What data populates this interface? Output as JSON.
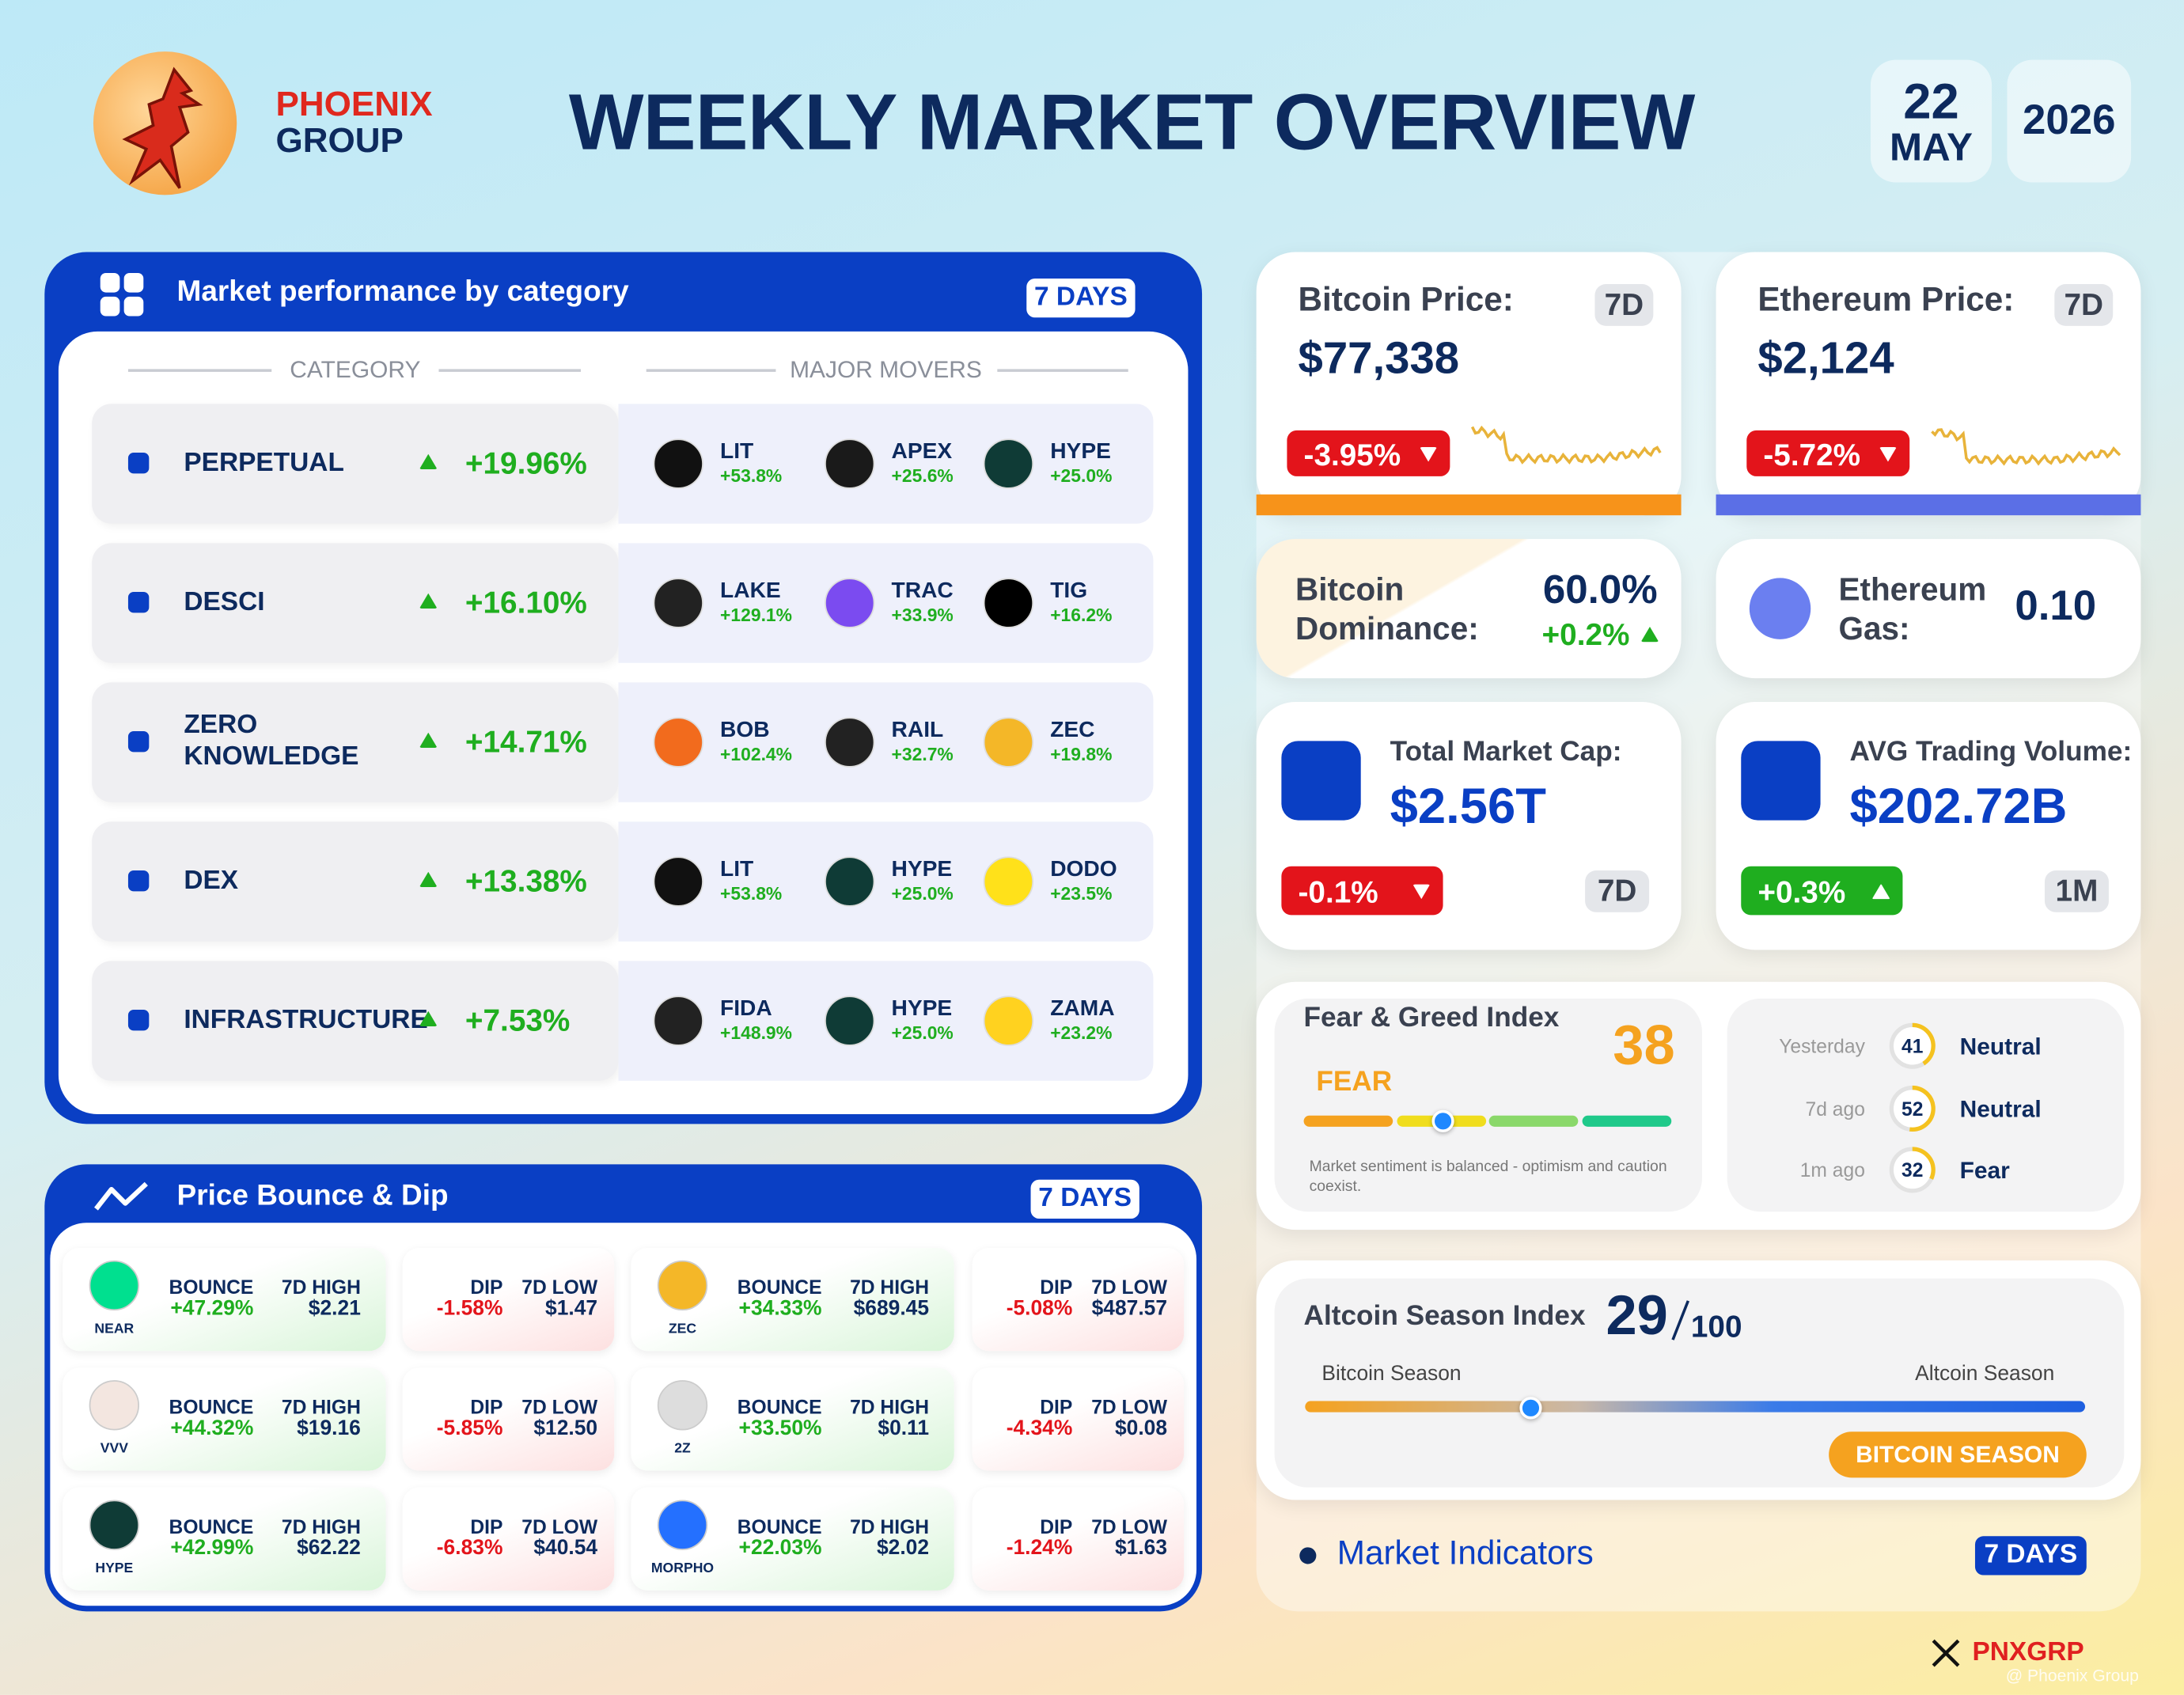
{
  "header": {
    "brand": [
      "PHOENIX",
      "GROUP"
    ],
    "title": "WEEKLY MARKET OVERVIEW",
    "date": {
      "day": "22",
      "month": "MAY",
      "year": "2026"
    }
  },
  "categories": {
    "title": "Market performance by category",
    "period": "7 DAYS",
    "columns": [
      "CATEGORY",
      "MAJOR MOVERS"
    ],
    "rows": [
      {
        "name": "PERPETUAL",
        "change": "+19.96%",
        "movers": [
          {
            "symbol": "LIT",
            "change": "+53.8%",
            "color": "#111111"
          },
          {
            "symbol": "APEX",
            "change": "+25.6%",
            "color": "#1a1a1a"
          },
          {
            "symbol": "HYPE",
            "change": "+25.0%",
            "color": "#0f3b36"
          }
        ]
      },
      {
        "name": "DESCI",
        "change": "+16.10%",
        "movers": [
          {
            "symbol": "LAKE",
            "change": "+129.1%",
            "color": "#222222"
          },
          {
            "symbol": "TRAC",
            "change": "+33.9%",
            "color": "#7b4bf0"
          },
          {
            "symbol": "TIG",
            "change": "+16.2%",
            "color": "#000000"
          }
        ]
      },
      {
        "name": "ZERO KNOWLEDGE",
        "change": "+14.71%",
        "movers": [
          {
            "symbol": "BOB",
            "change": "+102.4%",
            "color": "#f26b1d"
          },
          {
            "symbol": "RAIL",
            "change": "+32.7%",
            "color": "#222222"
          },
          {
            "symbol": "ZEC",
            "change": "+19.8%",
            "color": "#f4b728"
          }
        ]
      },
      {
        "name": "DEX",
        "change": "+13.38%",
        "movers": [
          {
            "symbol": "LIT",
            "change": "+53.8%",
            "color": "#111111"
          },
          {
            "symbol": "HYPE",
            "change": "+25.0%",
            "color": "#0f3b36"
          },
          {
            "symbol": "DODO",
            "change": "+23.5%",
            "color": "#ffe11a"
          }
        ]
      },
      {
        "name": "INFRASTRUCTURE",
        "change": "+7.53%",
        "movers": [
          {
            "symbol": "FIDA",
            "change": "+148.9%",
            "color": "#222222"
          },
          {
            "symbol": "HYPE",
            "change": "+25.0%",
            "color": "#0f3b36"
          },
          {
            "symbol": "ZAMA",
            "change": "+23.2%",
            "color": "#ffd21f"
          }
        ]
      }
    ]
  },
  "bounce_dip": {
    "title": "Price Bounce & Dip",
    "period": "7 DAYS",
    "labels": {
      "bounce": "BOUNCE",
      "high": "7D HIGH",
      "dip": "DIP",
      "low": "7D LOW"
    },
    "tokens": [
      {
        "symbol": "NEAR",
        "color": "#00e08f",
        "bounce": "+47.29%",
        "high": "$2.21",
        "dip": "-1.58%",
        "low": "$1.47"
      },
      {
        "symbol": "ZEC",
        "color": "#f4b728",
        "bounce": "+34.33%",
        "high": "$689.45",
        "dip": "-5.08%",
        "low": "$487.57"
      },
      {
        "symbol": "VVV",
        "color": "#f3e6e0",
        "bounce": "+44.32%",
        "high": "$19.16",
        "dip": "-5.85%",
        "low": "$12.50"
      },
      {
        "symbol": "2Z",
        "color": "#dddddd",
        "bounce": "+33.50%",
        "high": "$0.11",
        "dip": "-4.34%",
        "low": "$0.08"
      },
      {
        "symbol": "HYPE",
        "color": "#0f3b36",
        "bounce": "+42.99%",
        "high": "$62.22",
        "dip": "-6.83%",
        "low": "$40.54"
      },
      {
        "symbol": "MORPHO",
        "color": "#2470ff",
        "bounce": "+22.03%",
        "high": "$2.02",
        "dip": "-1.24%",
        "low": "$1.63"
      }
    ]
  },
  "bitcoin": {
    "label": "Bitcoin Price:",
    "period": "7D",
    "price": "$77,338",
    "change": "-3.95%"
  },
  "ethereum": {
    "label": "Ethereum Price:",
    "period": "7D",
    "price": "$2,124",
    "change": "-5.72%"
  },
  "dominance": {
    "label": "Bitcoin Dominance:",
    "value": "60.0%",
    "change": "+0.2%"
  },
  "gas": {
    "label": "Ethereum Gas:",
    "value": "0.10"
  },
  "market_cap": {
    "label": "Total Market Cap:",
    "value": "$2.56T",
    "change": "-0.1%",
    "period": "7D"
  },
  "volume": {
    "label": "AVG Trading Volume:",
    "value": "$202.72B",
    "change": "+0.3%",
    "period": "1M"
  },
  "fear_greed": {
    "title": "Fear & Greed Index",
    "value": 38,
    "label": "FEAR",
    "note": "Market sentiment is balanced - optimism and caution coexist.",
    "history": [
      {
        "when": "Yesterday",
        "value": 41,
        "label": "Neutral"
      },
      {
        "when": "7d ago",
        "value": 52,
        "label": "Neutral"
      },
      {
        "when": "1m ago",
        "value": 32,
        "label": "Fear"
      }
    ]
  },
  "altcoin_season": {
    "title": "Altcoin Season Index",
    "value": 29,
    "out_of": 100,
    "left": "Bitcoin Season",
    "right": "Altcoin Season",
    "badge": "BITCOIN SEASON"
  },
  "footer": {
    "section": "Market Indicators",
    "period": "7 DAYS",
    "handle": "PNXGRP",
    "watermark": "@ Phoenix Group"
  }
}
